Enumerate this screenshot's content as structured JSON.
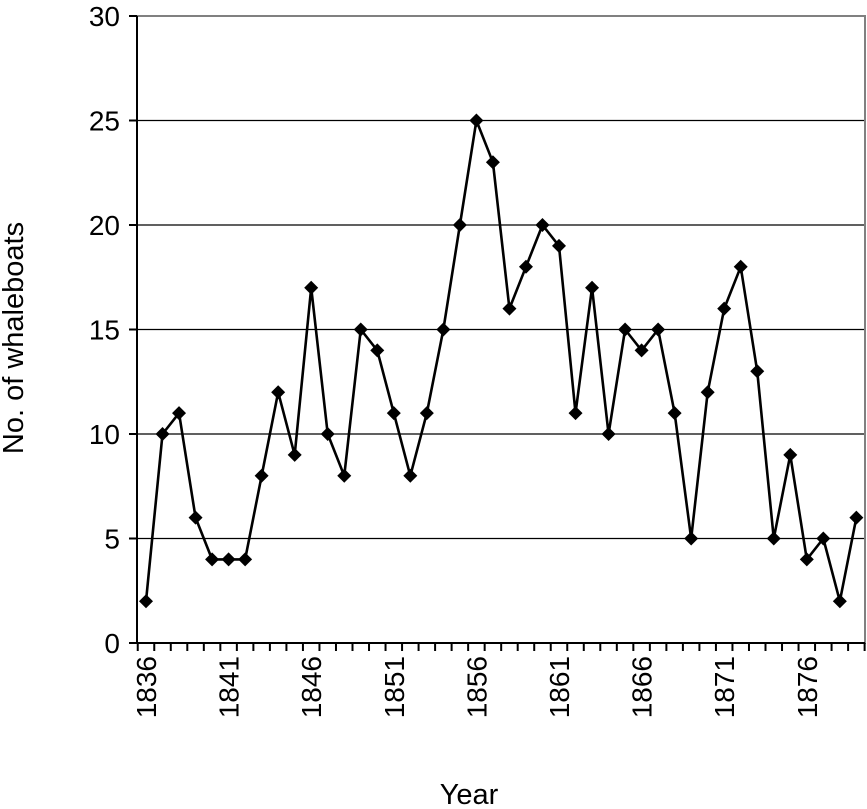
{
  "chart_data": {
    "type": "line",
    "title": "",
    "xlabel": "Year",
    "ylabel": "No. of whaleboats",
    "ylim": [
      0,
      30
    ],
    "yticks": [
      0,
      5,
      10,
      15,
      20,
      25,
      30
    ],
    "xtick_labels": [
      "1836",
      "1841",
      "1846",
      "1851",
      "1856",
      "1861",
      "1866",
      "1871",
      "1876"
    ],
    "grid": "horizontal",
    "marker": "diamond",
    "series": [
      {
        "x": [
          1836,
          1837,
          1838,
          1839,
          1840,
          1841,
          1842,
          1843,
          1844,
          1845,
          1846,
          1847,
          1848,
          1849,
          1850,
          1851,
          1852,
          1853,
          1854,
          1855,
          1856,
          1857,
          1858,
          1859,
          1860,
          1861,
          1862,
          1863,
          1864,
          1865,
          1866,
          1867,
          1868,
          1869,
          1870,
          1871,
          1872,
          1873,
          1874,
          1875,
          1876,
          1877,
          1878,
          1879
        ],
        "values": [
          2,
          10,
          11,
          6,
          4,
          4,
          4,
          8,
          12,
          9,
          17,
          10,
          8,
          15,
          14,
          11,
          8,
          11,
          15,
          20,
          25,
          23,
          16,
          18,
          20,
          19,
          11,
          17,
          10,
          15,
          14,
          15,
          11,
          5,
          12,
          16,
          18,
          13,
          5,
          9,
          4,
          5,
          2,
          6
        ]
      }
    ]
  }
}
